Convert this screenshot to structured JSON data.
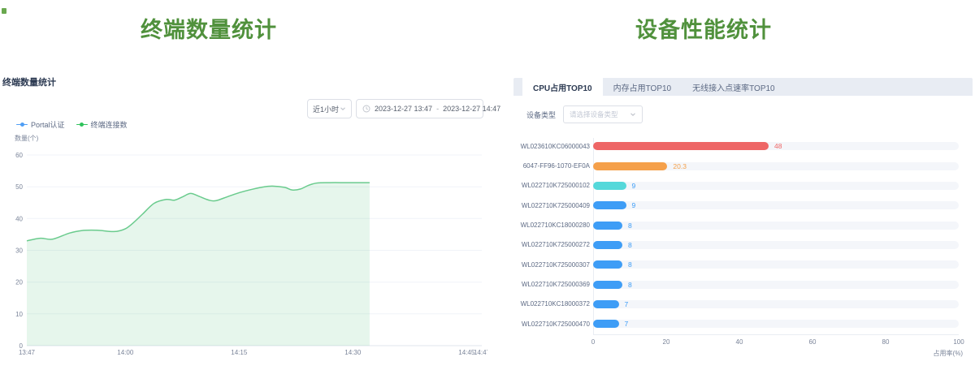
{
  "page": {
    "left_heading": "终端数量统计",
    "right_heading": "设备性能统计",
    "heading_color": "#50913c"
  },
  "terminal_panel": {
    "card_title": "终端数量统计",
    "range_select_value": "近1小时",
    "date_range": {
      "start": "2023-12-27 13:47",
      "separator": "-",
      "end": "2023-12-27 14:47"
    },
    "y_axis_title": "数量(个)",
    "legend": [
      {
        "name": "legend-portal-auth",
        "label": "Portal认证",
        "color": "#4f9ef5"
      },
      {
        "name": "legend-terminal-connections",
        "label": "终端连接数",
        "color": "#2fc25b"
      }
    ]
  },
  "performance_panel": {
    "tabs": [
      {
        "name": "tab-cpu-top10",
        "label": "CPU占用TOP10",
        "active": true
      },
      {
        "name": "tab-memory-top10",
        "label": "内存占用TOP10",
        "active": false
      },
      {
        "name": "tab-wireless-ap-rate-top10",
        "label": "无线接入点速率TOP10",
        "active": false
      }
    ],
    "device_type_label": "设备类型",
    "device_type_placeholder": "请选择设备类型"
  },
  "chart_data": [
    {
      "type": "area",
      "title": "终端数量统计",
      "ylabel": "数量(个)",
      "ylim": [
        0,
        60
      ],
      "y_ticks": [
        0,
        10,
        20,
        30,
        40,
        50,
        60
      ],
      "x_range_minutes": 60,
      "x_ticks": [
        "13:47",
        "14:00",
        "14:15",
        "14:30",
        "14:45",
        "14:47"
      ],
      "x_tick_minutes": [
        0,
        13,
        28,
        43,
        58,
        60
      ],
      "grid": true,
      "legend_position": "top-left",
      "series": [
        {
          "name": "Portal认证",
          "color": "#4f9ef5",
          "points": []
        },
        {
          "name": "终端连接数",
          "color": "#2fc25b",
          "line_color": "#6acb8d",
          "fill_color": "rgba(102,199,138,0.16)",
          "points": [
            [
              0,
              33
            ],
            [
              1.8,
              33.8
            ],
            [
              3.4,
              33.5
            ],
            [
              5.6,
              35.4
            ],
            [
              7.2,
              36.2
            ],
            [
              9.3,
              36.3
            ],
            [
              11.5,
              35.9
            ],
            [
              13,
              36.8
            ],
            [
              14.2,
              39
            ],
            [
              15.3,
              41.5
            ],
            [
              16.8,
              44.8
            ],
            [
              18.4,
              46
            ],
            [
              19.5,
              45.8
            ],
            [
              20.6,
              46.9
            ],
            [
              21.6,
              47.9
            ],
            [
              22.7,
              47
            ],
            [
              24,
              45.8
            ],
            [
              24.9,
              45.6
            ],
            [
              26.5,
              46.9
            ],
            [
              28.1,
              48.2
            ],
            [
              29.7,
              49.2
            ],
            [
              31.3,
              50
            ],
            [
              32.4,
              50.2
            ],
            [
              34,
              49.8
            ],
            [
              35,
              49
            ],
            [
              36.1,
              49.3
            ],
            [
              37.2,
              50.5
            ],
            [
              38.3,
              51.2
            ],
            [
              40,
              51.3
            ],
            [
              42,
              51.3
            ],
            [
              44,
              51.3
            ],
            [
              45.2,
              51.3
            ]
          ]
        }
      ]
    },
    {
      "type": "bar",
      "orientation": "horizontal",
      "title": "CPU占用TOP10",
      "categories": [
        "WL023610KC06000043",
        "6047-FF96-1070-EF0A",
        "WL022710K725000102",
        "WL022710K725000409",
        "WL022710KC18000280",
        "WL022710K725000272",
        "WL022710K725000307",
        "WL022710K725000369",
        "WL022710KC18000372",
        "WL022710K725000470"
      ],
      "values": [
        48,
        20.3,
        9,
        9,
        8,
        8,
        8,
        8,
        7,
        7
      ],
      "bar_colors": [
        "#ee6666",
        "#f5a04a",
        "#55d8da",
        "#3e9df6",
        "#3e9df6",
        "#3e9df6",
        "#3e9df6",
        "#3e9df6",
        "#3e9df6",
        "#3e9df6"
      ],
      "value_colors": [
        "#ee6666",
        "#f5a04a",
        "#3e9df6",
        "#3e9df6",
        "#3e9df6",
        "#3e9df6",
        "#3e9df6",
        "#3e9df6",
        "#3e9df6",
        "#3e9df6"
      ],
      "xlabel": "占用率(%)",
      "xlim": [
        0,
        100
      ],
      "x_ticks": [
        0,
        20,
        40,
        60,
        80,
        100
      ],
      "track_color": "#f4f6fa"
    }
  ]
}
